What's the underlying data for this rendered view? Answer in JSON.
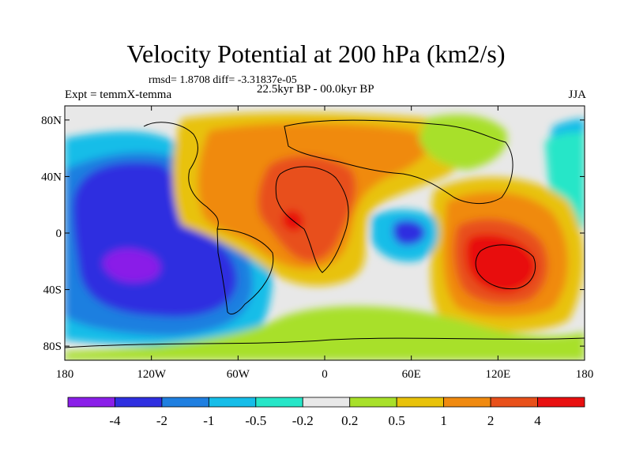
{
  "title": "Velocity Potential at 200 hPa (km2/s)",
  "stats_line": "rmsd= 1.8708 diff= -3.31837e-05",
  "left_label": "Expt = temmX-temma",
  "center_label": "22.5kyr BP - 00.0kyr BP",
  "right_label": "JJA",
  "lat_ticks": [
    {
      "label": "80N",
      "lat": 80
    },
    {
      "label": "40N",
      "lat": 40
    },
    {
      "label": "0",
      "lat": 0
    },
    {
      "label": "40S",
      "lat": -40
    },
    {
      "label": "80S",
      "lat": -80
    }
  ],
  "lon_ticks": [
    {
      "label": "180",
      "lon": -180
    },
    {
      "label": "120W",
      "lon": -120
    },
    {
      "label": "60W",
      "lon": -60
    },
    {
      "label": "0",
      "lon": 0
    },
    {
      "label": "60E",
      "lon": 60
    },
    {
      "label": "120E",
      "lon": 120
    },
    {
      "label": "180",
      "lon": 180
    }
  ],
  "colorbar": {
    "colors": [
      "#8a1fe8",
      "#2f2fe0",
      "#1f7fe0",
      "#16bde8",
      "#26e6c8",
      "#e8e8e8",
      "#a8e02a",
      "#e8c20a",
      "#f08a10",
      "#e8501a",
      "#e81010"
    ],
    "labels": [
      "-4",
      "-2",
      "-1",
      "-0.5",
      "-0.2",
      "0.2",
      "0.5",
      "1",
      "2",
      "4"
    ]
  },
  "map_background": "#e8e8e8"
}
